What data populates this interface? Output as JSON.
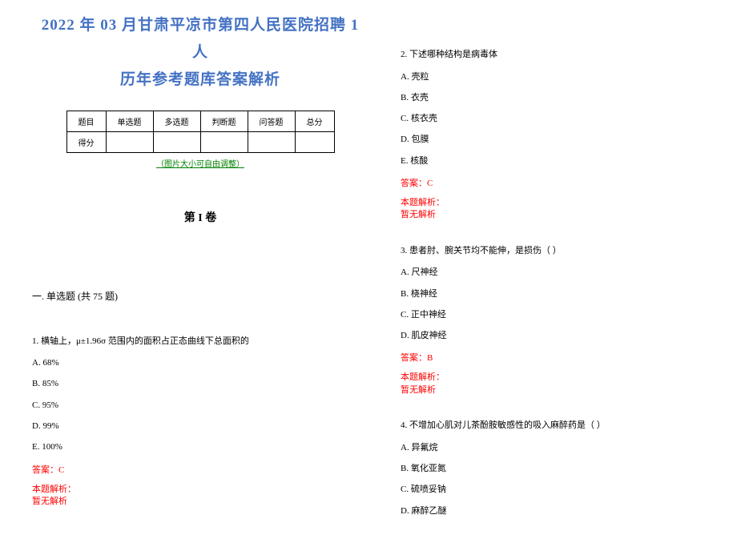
{
  "title_line1": "2022 年 03 月甘肃平凉市第四人民医院招聘 1 人",
  "title_line2": "历年参考题库答案解析",
  "table": {
    "headers": [
      "题目",
      "单选题",
      "多选题",
      "判断题",
      "问答题",
      "总分"
    ],
    "score_label": "得分"
  },
  "table_note": "（图片大小可自由调整）",
  "volume_title": "第 I 卷",
  "section_title": "一. 单选题 (共 75 题)",
  "questions": [
    {
      "number": "1.",
      "text": "横轴上，μ±1.96σ 范围内的面积占正态曲线下总面积的",
      "options": [
        "A. 68%",
        "B. 85%",
        "C. 95%",
        "D. 99%",
        "E. 100%"
      ],
      "answer": "答案：C",
      "analysis_label": "本题解析：",
      "analysis_text": "暂无解析"
    },
    {
      "number": "2.",
      "text": "下述哪种结构是病毒体",
      "options": [
        "A. 壳粒",
        "B. 衣壳",
        "C. 核衣壳",
        "D. 包膜",
        "E. 核酸"
      ],
      "answer": "答案：C",
      "analysis_label": "本题解析：",
      "analysis_text": "暂无解析"
    },
    {
      "number": "3.",
      "text": "患者肘、腕关节均不能伸，是损伤（ ）",
      "options": [
        "A. 尺神经",
        "B. 桡神经",
        "C. 正中神经",
        "D. 肌皮神经"
      ],
      "answer": "答案：B",
      "analysis_label": "本题解析：",
      "analysis_text": "暂无解析"
    },
    {
      "number": "4.",
      "text": "不增加心肌对儿茶酚胺敏感性的吸入麻醉药是（  ）",
      "options": [
        "A. 异氟烷",
        "B. 氧化亚氮",
        "C. 硫喷妥钠",
        "D. 麻醉乙醚"
      ],
      "answer": "",
      "analysis_label": "",
      "analysis_text": ""
    }
  ]
}
